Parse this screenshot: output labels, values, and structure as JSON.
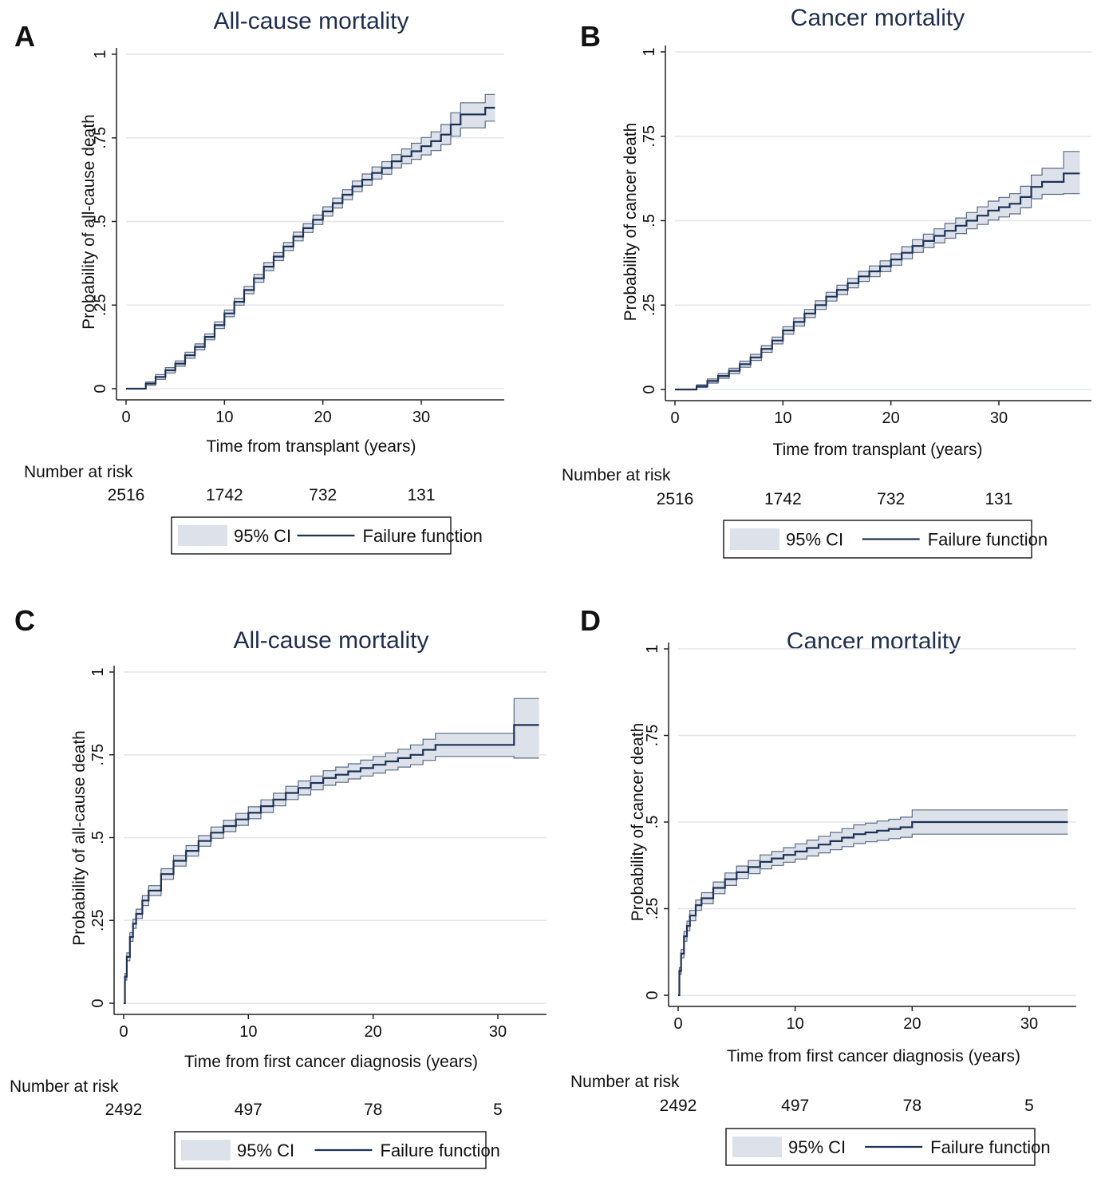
{
  "colors": {
    "line": "#1e3256",
    "ci_fill": "#dde2ea",
    "ci_edge": "#5a6a86",
    "grid": "#e3e6ea",
    "axis": "#222222",
    "title": "#1f2d50"
  },
  "chart_data": [
    {
      "panel": "A",
      "type": "line",
      "title": "All-cause mortality",
      "xlabel": "Time from transplant (years)",
      "ylabel": "Probability of all-cause death",
      "xlim": [
        0,
        38
      ],
      "ylim": [
        0,
        1
      ],
      "xticks": [
        0,
        10,
        20,
        30
      ],
      "yticks": [
        0,
        0.25,
        0.5,
        0.75,
        1
      ],
      "ytick_labels": [
        "0",
        ".25",
        ".5",
        ".75",
        "1"
      ],
      "grid": true,
      "series": [
        {
          "name": "Failure function",
          "x": [
            0,
            1.2,
            2,
            3,
            4,
            5,
            6,
            7,
            8,
            9,
            10,
            11,
            12,
            13,
            14,
            15,
            16,
            17,
            18,
            19,
            20,
            21,
            22,
            23,
            24,
            25,
            26,
            27,
            28,
            29,
            30,
            31,
            32,
            33,
            34,
            35,
            35.5,
            36,
            36.5,
            37.5
          ],
          "y": [
            0,
            0,
            0.015,
            0.035,
            0.055,
            0.075,
            0.1,
            0.125,
            0.155,
            0.19,
            0.225,
            0.26,
            0.295,
            0.33,
            0.365,
            0.395,
            0.425,
            0.455,
            0.48,
            0.505,
            0.53,
            0.555,
            0.58,
            0.605,
            0.625,
            0.645,
            0.66,
            0.68,
            0.695,
            0.71,
            0.725,
            0.74,
            0.76,
            0.79,
            0.82,
            0.82,
            0.82,
            0.82,
            0.84,
            0.84
          ],
          "ci_lower": [
            0,
            0,
            0.01,
            0.028,
            0.047,
            0.067,
            0.091,
            0.116,
            0.146,
            0.18,
            0.215,
            0.25,
            0.284,
            0.318,
            0.353,
            0.383,
            0.413,
            0.442,
            0.467,
            0.491,
            0.516,
            0.54,
            0.565,
            0.589,
            0.608,
            0.627,
            0.641,
            0.66,
            0.673,
            0.686,
            0.699,
            0.712,
            0.73,
            0.755,
            0.78,
            0.78,
            0.78,
            0.78,
            0.8,
            0.8
          ],
          "ci_upper": [
            0,
            0,
            0.02,
            0.042,
            0.063,
            0.083,
            0.109,
            0.134,
            0.164,
            0.2,
            0.235,
            0.27,
            0.306,
            0.342,
            0.377,
            0.407,
            0.437,
            0.468,
            0.493,
            0.519,
            0.544,
            0.57,
            0.595,
            0.621,
            0.642,
            0.663,
            0.679,
            0.7,
            0.717,
            0.734,
            0.751,
            0.768,
            0.79,
            0.825,
            0.855,
            0.855,
            0.855,
            0.855,
            0.88,
            0.88
          ]
        }
      ],
      "risk_label": "Number at risk",
      "risk_x": [
        0,
        10,
        20,
        30
      ],
      "risk_values": [
        "2516",
        "1742",
        "732",
        "131"
      ],
      "legend": {
        "ci_label": "95% CI",
        "line_label": "Failure function",
        "placement": "bottom-center"
      }
    },
    {
      "panel": "B",
      "type": "line",
      "title": "Cancer mortality",
      "xlabel": "Time from transplant (years)",
      "ylabel": "Probability of cancer death",
      "xlim": [
        0,
        38
      ],
      "ylim": [
        0,
        1
      ],
      "xticks": [
        0,
        10,
        20,
        30
      ],
      "yticks": [
        0,
        0.25,
        0.5,
        0.75,
        1
      ],
      "ytick_labels": [
        "0",
        ".25",
        ".5",
        ".75",
        "1"
      ],
      "grid": true,
      "series": [
        {
          "name": "Failure function",
          "x": [
            0,
            1.2,
            2,
            3,
            4,
            5,
            6,
            7,
            8,
            9,
            10,
            11,
            12,
            13,
            14,
            15,
            16,
            17,
            18,
            19,
            20,
            21,
            22,
            23,
            24,
            25,
            26,
            27,
            28,
            29,
            30,
            31,
            32,
            33,
            34,
            35,
            36,
            37.5
          ],
          "y": [
            0,
            0,
            0.01,
            0.025,
            0.04,
            0.055,
            0.075,
            0.095,
            0.12,
            0.145,
            0.175,
            0.2,
            0.225,
            0.25,
            0.275,
            0.295,
            0.315,
            0.335,
            0.35,
            0.365,
            0.385,
            0.405,
            0.425,
            0.44,
            0.455,
            0.47,
            0.485,
            0.5,
            0.515,
            0.53,
            0.54,
            0.55,
            0.57,
            0.6,
            0.615,
            0.615,
            0.64,
            0.64
          ],
          "ci_lower": [
            0,
            0,
            0.006,
            0.019,
            0.033,
            0.047,
            0.066,
            0.086,
            0.11,
            0.135,
            0.164,
            0.188,
            0.213,
            0.237,
            0.262,
            0.281,
            0.301,
            0.32,
            0.334,
            0.349,
            0.368,
            0.387,
            0.406,
            0.42,
            0.434,
            0.448,
            0.462,
            0.476,
            0.489,
            0.502,
            0.511,
            0.52,
            0.538,
            0.565,
            0.578,
            0.578,
            0.58,
            0.58
          ],
          "ci_upper": [
            0,
            0,
            0.014,
            0.031,
            0.047,
            0.063,
            0.084,
            0.104,
            0.13,
            0.155,
            0.186,
            0.212,
            0.237,
            0.263,
            0.288,
            0.309,
            0.329,
            0.35,
            0.366,
            0.381,
            0.402,
            0.423,
            0.444,
            0.46,
            0.476,
            0.492,
            0.508,
            0.524,
            0.541,
            0.558,
            0.569,
            0.58,
            0.602,
            0.635,
            0.655,
            0.655,
            0.705,
            0.705
          ]
        }
      ],
      "risk_label": "Number at risk",
      "risk_x": [
        0,
        10,
        20,
        30
      ],
      "risk_values": [
        "2516",
        "1742",
        "732",
        "131"
      ],
      "legend": {
        "ci_label": "95% CI",
        "line_label": "Failure function",
        "placement": "bottom-center"
      }
    },
    {
      "panel": "C",
      "type": "line",
      "title": "All-cause mortality",
      "xlabel": "Time from first cancer diagnosis (years)",
      "ylabel": "Probability of all-cause death",
      "xlim": [
        0,
        34
      ],
      "ylim": [
        0,
        1
      ],
      "xticks": [
        0,
        10,
        20,
        30
      ],
      "yticks": [
        0,
        0.25,
        0.5,
        0.75,
        1
      ],
      "ytick_labels": [
        "0",
        ".25",
        ".5",
        ".75",
        "1"
      ],
      "grid": true,
      "series": [
        {
          "name": "Failure function",
          "x": [
            0,
            0.1,
            0.25,
            0.5,
            0.75,
            1,
            1.5,
            2,
            3,
            4,
            5,
            6,
            7,
            8,
            9,
            10,
            11,
            12,
            13,
            14,
            15,
            16,
            17,
            18,
            19,
            20,
            21,
            22,
            23,
            24,
            25,
            27,
            29,
            31.2,
            31.3,
            33.3
          ],
          "y": [
            0,
            0.08,
            0.14,
            0.2,
            0.24,
            0.27,
            0.31,
            0.34,
            0.39,
            0.43,
            0.46,
            0.49,
            0.515,
            0.535,
            0.555,
            0.575,
            0.595,
            0.615,
            0.635,
            0.65,
            0.665,
            0.68,
            0.69,
            0.7,
            0.71,
            0.72,
            0.73,
            0.74,
            0.75,
            0.765,
            0.78,
            0.78,
            0.78,
            0.78,
            0.84,
            0.84
          ],
          "ci_lower": [
            0,
            0.07,
            0.128,
            0.187,
            0.226,
            0.256,
            0.295,
            0.325,
            0.374,
            0.414,
            0.444,
            0.474,
            0.498,
            0.518,
            0.537,
            0.557,
            0.576,
            0.596,
            0.615,
            0.629,
            0.644,
            0.658,
            0.667,
            0.677,
            0.686,
            0.695,
            0.704,
            0.713,
            0.72,
            0.733,
            0.745,
            0.745,
            0.745,
            0.745,
            0.74,
            0.74
          ],
          "ci_upper": [
            0,
            0.09,
            0.152,
            0.213,
            0.254,
            0.284,
            0.325,
            0.355,
            0.406,
            0.446,
            0.476,
            0.506,
            0.532,
            0.552,
            0.573,
            0.593,
            0.614,
            0.634,
            0.655,
            0.671,
            0.686,
            0.702,
            0.713,
            0.723,
            0.734,
            0.745,
            0.756,
            0.767,
            0.78,
            0.797,
            0.815,
            0.815,
            0.815,
            0.815,
            0.92,
            0.92
          ]
        }
      ],
      "risk_label": "Number at risk",
      "risk_x": [
        0,
        10,
        20,
        30
      ],
      "risk_values": [
        "2492",
        "497",
        "78",
        "5"
      ],
      "legend": {
        "ci_label": "95% CI",
        "line_label": "Failure function",
        "placement": "bottom-center"
      }
    },
    {
      "panel": "D",
      "type": "line",
      "title": "Cancer mortality",
      "xlabel": "Time from first cancer diagnosis (years)",
      "ylabel": "Probability of cancer death",
      "xlim": [
        0,
        34
      ],
      "ylim": [
        0,
        1
      ],
      "xticks": [
        0,
        10,
        20,
        30
      ],
      "yticks": [
        0,
        0.25,
        0.5,
        0.75,
        1
      ],
      "ytick_labels": [
        "0",
        ".25",
        ".5",
        ".75",
        "1"
      ],
      "grid": true,
      "series": [
        {
          "name": "Failure function",
          "x": [
            0,
            0.1,
            0.25,
            0.5,
            0.75,
            1,
            1.5,
            2,
            3,
            4,
            5,
            6,
            7,
            8,
            9,
            10,
            11,
            12,
            13,
            14,
            15,
            16,
            17,
            18,
            19,
            20,
            22,
            25,
            30,
            33.3
          ],
          "y": [
            0,
            0.07,
            0.12,
            0.17,
            0.2,
            0.23,
            0.26,
            0.28,
            0.31,
            0.335,
            0.355,
            0.37,
            0.385,
            0.395,
            0.405,
            0.415,
            0.425,
            0.435,
            0.445,
            0.455,
            0.465,
            0.47,
            0.475,
            0.48,
            0.485,
            0.5,
            0.5,
            0.5,
            0.5,
            0.5
          ],
          "ci_lower": [
            0,
            0.06,
            0.108,
            0.156,
            0.186,
            0.215,
            0.245,
            0.264,
            0.293,
            0.317,
            0.337,
            0.351,
            0.365,
            0.375,
            0.384,
            0.393,
            0.402,
            0.411,
            0.42,
            0.429,
            0.438,
            0.443,
            0.447,
            0.452,
            0.456,
            0.465,
            0.465,
            0.465,
            0.465,
            0.465
          ],
          "ci_upper": [
            0,
            0.08,
            0.132,
            0.184,
            0.214,
            0.245,
            0.275,
            0.296,
            0.327,
            0.353,
            0.373,
            0.389,
            0.405,
            0.415,
            0.426,
            0.437,
            0.448,
            0.459,
            0.47,
            0.481,
            0.492,
            0.497,
            0.503,
            0.508,
            0.514,
            0.535,
            0.535,
            0.535,
            0.535,
            0.535
          ]
        }
      ],
      "risk_label": "Number at risk",
      "risk_x": [
        0,
        10,
        20,
        30
      ],
      "risk_values": [
        "2492",
        "497",
        "78",
        "5"
      ],
      "legend": {
        "ci_label": "95% CI",
        "line_label": "Failure function",
        "placement": "bottom-center"
      }
    }
  ]
}
